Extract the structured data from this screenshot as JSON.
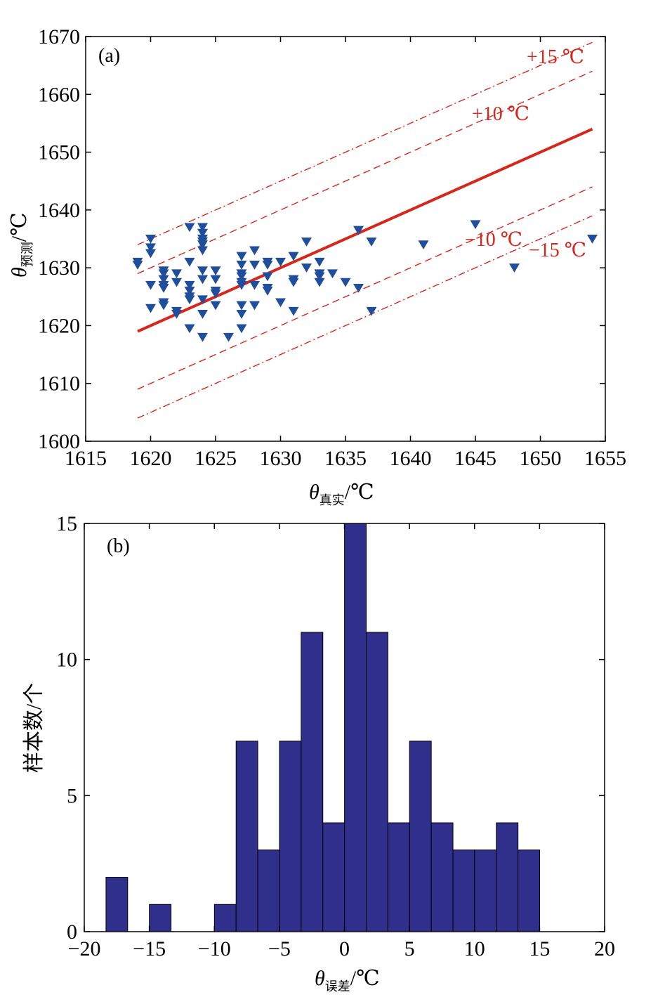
{
  "chart_data": [
    {
      "type": "scatter",
      "panel_label": "(a)",
      "xlabel": "θ",
      "xlabel_sub": "真实",
      "xlabel_unit": "/℃",
      "ylabel": "θ",
      "ylabel_sub": "预测",
      "ylabel_unit": "/℃",
      "xlim": [
        1615,
        1655
      ],
      "ylim": [
        1600,
        1670
      ],
      "xticks": [
        1615,
        1620,
        1625,
        1630,
        1635,
        1640,
        1645,
        1650,
        1655
      ],
      "yticks": [
        1600,
        1610,
        1620,
        1630,
        1640,
        1650,
        1660,
        1670
      ],
      "fit_line": {
        "x": [
          1619,
          1654
        ],
        "y": [
          1619,
          1654
        ],
        "color": "#d7261b"
      },
      "reference_lines": [
        {
          "label": "+15 ℃",
          "offset": 15,
          "style": "dashdot"
        },
        {
          "label": "+10 ℃",
          "offset": 10,
          "style": "dashed"
        },
        {
          "label": "−10 ℃",
          "offset": -10,
          "style": "dashed"
        },
        {
          "label": "−15 ℃",
          "offset": -15,
          "style": "dashdot"
        }
      ],
      "marker_color": "#1f4e9c",
      "points": [
        [
          1619,
          1631
        ],
        [
          1619,
          1630.5
        ],
        [
          1620,
          1635
        ],
        [
          1620,
          1633.5
        ],
        [
          1620,
          1632.5
        ],
        [
          1620,
          1627
        ],
        [
          1620,
          1623
        ],
        [
          1621,
          1629.5
        ],
        [
          1621,
          1629
        ],
        [
          1621,
          1628
        ],
        [
          1621,
          1627
        ],
        [
          1621,
          1626.5
        ],
        [
          1621,
          1624
        ],
        [
          1621,
          1623.5
        ],
        [
          1622,
          1629
        ],
        [
          1622,
          1627.5
        ],
        [
          1622,
          1622.5
        ],
        [
          1622,
          1622
        ],
        [
          1623,
          1637
        ],
        [
          1623,
          1631
        ],
        [
          1623,
          1627
        ],
        [
          1623,
          1626
        ],
        [
          1623,
          1625
        ],
        [
          1623,
          1624.5
        ],
        [
          1623,
          1619.5
        ],
        [
          1624,
          1637
        ],
        [
          1624,
          1636
        ],
        [
          1624,
          1635
        ],
        [
          1624,
          1634.5
        ],
        [
          1624,
          1634
        ],
        [
          1624,
          1633
        ],
        [
          1624,
          1629.5
        ],
        [
          1624,
          1628
        ],
        [
          1624,
          1624.5
        ],
        [
          1624,
          1622
        ],
        [
          1624,
          1618
        ],
        [
          1625,
          1629.5
        ],
        [
          1625,
          1628
        ],
        [
          1625,
          1626
        ],
        [
          1625,
          1625.5
        ],
        [
          1625,
          1623.5
        ],
        [
          1626,
          1618
        ],
        [
          1627,
          1632
        ],
        [
          1627,
          1630.5
        ],
        [
          1627,
          1629
        ],
        [
          1627,
          1628.5
        ],
        [
          1627,
          1627.5
        ],
        [
          1627,
          1627
        ],
        [
          1627,
          1623.5
        ],
        [
          1627,
          1622
        ],
        [
          1627,
          1619.5
        ],
        [
          1628,
          1633
        ],
        [
          1628,
          1630.5
        ],
        [
          1628,
          1627
        ],
        [
          1628,
          1623.5
        ],
        [
          1629,
          1631
        ],
        [
          1629,
          1630.5
        ],
        [
          1629,
          1628.5
        ],
        [
          1629,
          1626.5
        ],
        [
          1629,
          1626
        ],
        [
          1630,
          1631
        ],
        [
          1630,
          1624
        ],
        [
          1631,
          1632
        ],
        [
          1631,
          1628
        ],
        [
          1631,
          1627.5
        ],
        [
          1631,
          1622.5
        ],
        [
          1632,
          1634.5
        ],
        [
          1632,
          1630
        ],
        [
          1633,
          1631
        ],
        [
          1633,
          1629
        ],
        [
          1633,
          1628.5
        ],
        [
          1633,
          1627.5
        ],
        [
          1634,
          1629
        ],
        [
          1635,
          1627.5
        ],
        [
          1636,
          1636.5
        ],
        [
          1636,
          1626.5
        ],
        [
          1637,
          1634.5
        ],
        [
          1637,
          1622.5
        ],
        [
          1641,
          1634
        ],
        [
          1645,
          1637.5
        ],
        [
          1648,
          1630
        ],
        [
          1654,
          1635
        ]
      ]
    },
    {
      "type": "bar",
      "panel_label": "(b)",
      "xlabel": "θ",
      "xlabel_sub": "误差",
      "xlabel_unit": "/℃",
      "ylabel": "样本数/个",
      "xlim": [
        -20,
        20
      ],
      "ylim": [
        0,
        15
      ],
      "xticks": [
        -20,
        -15,
        -10,
        -5,
        0,
        5,
        10,
        15,
        20
      ],
      "xtick_labels": [
        "−20",
        "−15",
        "−10",
        "−5",
        "0",
        "5",
        "10",
        "15",
        "20"
      ],
      "yticks": [
        0,
        5,
        10,
        15
      ],
      "bar_color": "#30308c",
      "bin_width": 1.667,
      "bin_left": -18.33,
      "values": [
        2,
        0,
        1,
        0,
        0,
        1,
        7,
        3,
        7,
        11,
        4,
        15,
        11,
        4,
        7,
        4,
        3,
        3,
        4,
        3
      ]
    }
  ]
}
